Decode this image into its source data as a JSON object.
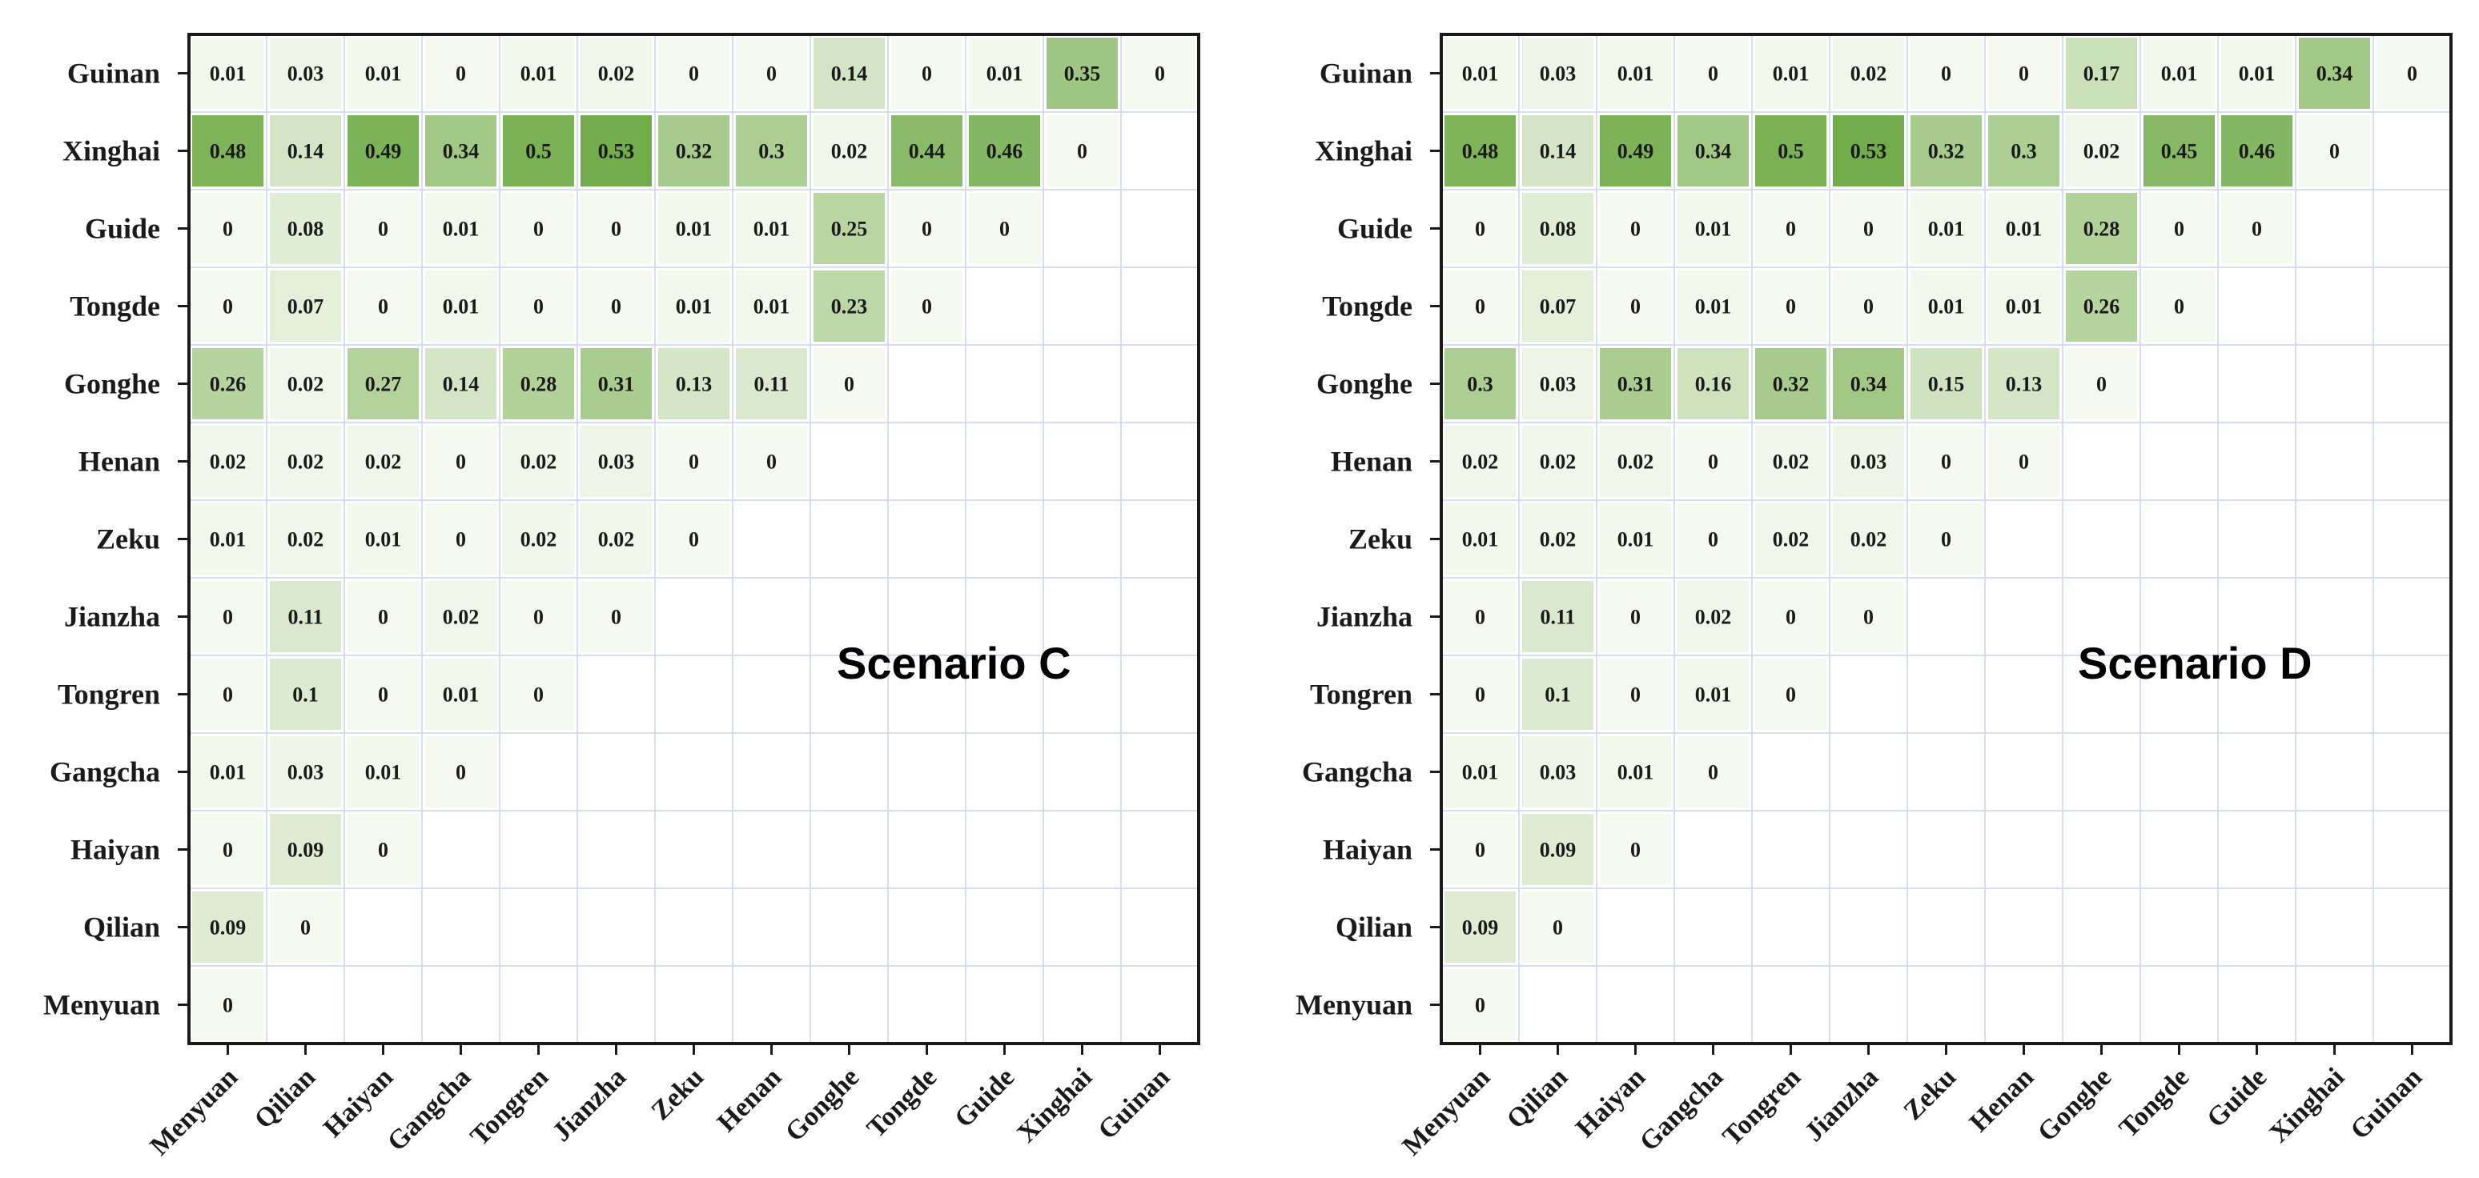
{
  "colors": {
    "low": "#f5f9ef",
    "high": "#6eaa45",
    "grid": "#ccd4ec",
    "frame": "#1a1a1a"
  },
  "chart_data": [
    {
      "type": "heatmap",
      "title": "Scenario C",
      "x_categories": [
        "Menyuan",
        "Qilian",
        "Haiyan",
        "Gangcha",
        "Tongren",
        "Jianzha",
        "Zeku",
        "Henan",
        "Gonghe",
        "Tongde",
        "Guide",
        "Xinghai",
        "Guinan"
      ],
      "y_categories": [
        "Guinan",
        "Xinghai",
        "Guide",
        "Tongde",
        "Gonghe",
        "Henan",
        "Zeku",
        "Jianzha",
        "Tongren",
        "Gangcha",
        "Haiyan",
        "Qilian",
        "Menyuan"
      ],
      "values": [
        [
          "0.01",
          "0.03",
          "0.01",
          "0",
          "0.01",
          "0.02",
          "0",
          "0",
          "0.14",
          "0",
          "0.01",
          "0.35",
          "0"
        ],
        [
          "0.48",
          "0.14",
          "0.49",
          "0.34",
          "0.5",
          "0.53",
          "0.32",
          "0.3",
          "0.02",
          "0.44",
          "0.46",
          "0"
        ],
        [
          "0",
          "0.08",
          "0",
          "0.01",
          "0",
          "0",
          "0.01",
          "0.01",
          "0.25",
          "0",
          "0"
        ],
        [
          "0",
          "0.07",
          "0",
          "0.01",
          "0",
          "0",
          "0.01",
          "0.01",
          "0.23",
          "0"
        ],
        [
          "0.26",
          "0.02",
          "0.27",
          "0.14",
          "0.28",
          "0.31",
          "0.13",
          "0.11",
          "0"
        ],
        [
          "0.02",
          "0.02",
          "0.02",
          "0",
          "0.02",
          "0.03",
          "0",
          "0"
        ],
        [
          "0.01",
          "0.02",
          "0.01",
          "0",
          "0.02",
          "0.02",
          "0"
        ],
        [
          "0",
          "0.11",
          "0",
          "0.02",
          "0",
          "0"
        ],
        [
          "0",
          "0.1",
          "0",
          "0.01",
          "0"
        ],
        [
          "0.01",
          "0.03",
          "0.01",
          "0"
        ],
        [
          "0",
          "0.09",
          "0"
        ],
        [
          "0.09",
          "0"
        ],
        [
          "0"
        ]
      ],
      "value_range": [
        0,
        0.55
      ],
      "grid": true
    },
    {
      "type": "heatmap",
      "title": "Scenario D",
      "x_categories": [
        "Menyuan",
        "Qilian",
        "Haiyan",
        "Gangcha",
        "Tongren",
        "Jianzha",
        "Zeku",
        "Henan",
        "Gonghe",
        "Tongde",
        "Guide",
        "Xinghai",
        "Guinan"
      ],
      "y_categories": [
        "Guinan",
        "Xinghai",
        "Guide",
        "Tongde",
        "Gonghe",
        "Henan",
        "Zeku",
        "Jianzha",
        "Tongren",
        "Gangcha",
        "Haiyan",
        "Qilian",
        "Menyuan"
      ],
      "values": [
        [
          "0.01",
          "0.03",
          "0.01",
          "0",
          "0.01",
          "0.02",
          "0",
          "0",
          "0.17",
          "0.01",
          "0.01",
          "0.34",
          "0"
        ],
        [
          "0.48",
          "0.14",
          "0.49",
          "0.34",
          "0.5",
          "0.53",
          "0.32",
          "0.3",
          "0.02",
          "0.45",
          "0.46",
          "0"
        ],
        [
          "0",
          "0.08",
          "0",
          "0.01",
          "0",
          "0",
          "0.01",
          "0.01",
          "0.28",
          "0",
          "0"
        ],
        [
          "0",
          "0.07",
          "0",
          "0.01",
          "0",
          "0",
          "0.01",
          "0.01",
          "0.26",
          "0"
        ],
        [
          "0.3",
          "0.03",
          "0.31",
          "0.16",
          "0.32",
          "0.34",
          "0.15",
          "0.13",
          "0"
        ],
        [
          "0.02",
          "0.02",
          "0.02",
          "0",
          "0.02",
          "0.03",
          "0",
          "0"
        ],
        [
          "0.01",
          "0.02",
          "0.01",
          "0",
          "0.02",
          "0.02",
          "0"
        ],
        [
          "0",
          "0.11",
          "0",
          "0.02",
          "0",
          "0"
        ],
        [
          "0",
          "0.1",
          "0",
          "0.01",
          "0"
        ],
        [
          "0.01",
          "0.03",
          "0.01",
          "0"
        ],
        [
          "0",
          "0.09",
          "0"
        ],
        [
          "0.09",
          "0"
        ],
        [
          "0"
        ]
      ],
      "value_range": [
        0,
        0.55
      ],
      "grid": true
    }
  ]
}
